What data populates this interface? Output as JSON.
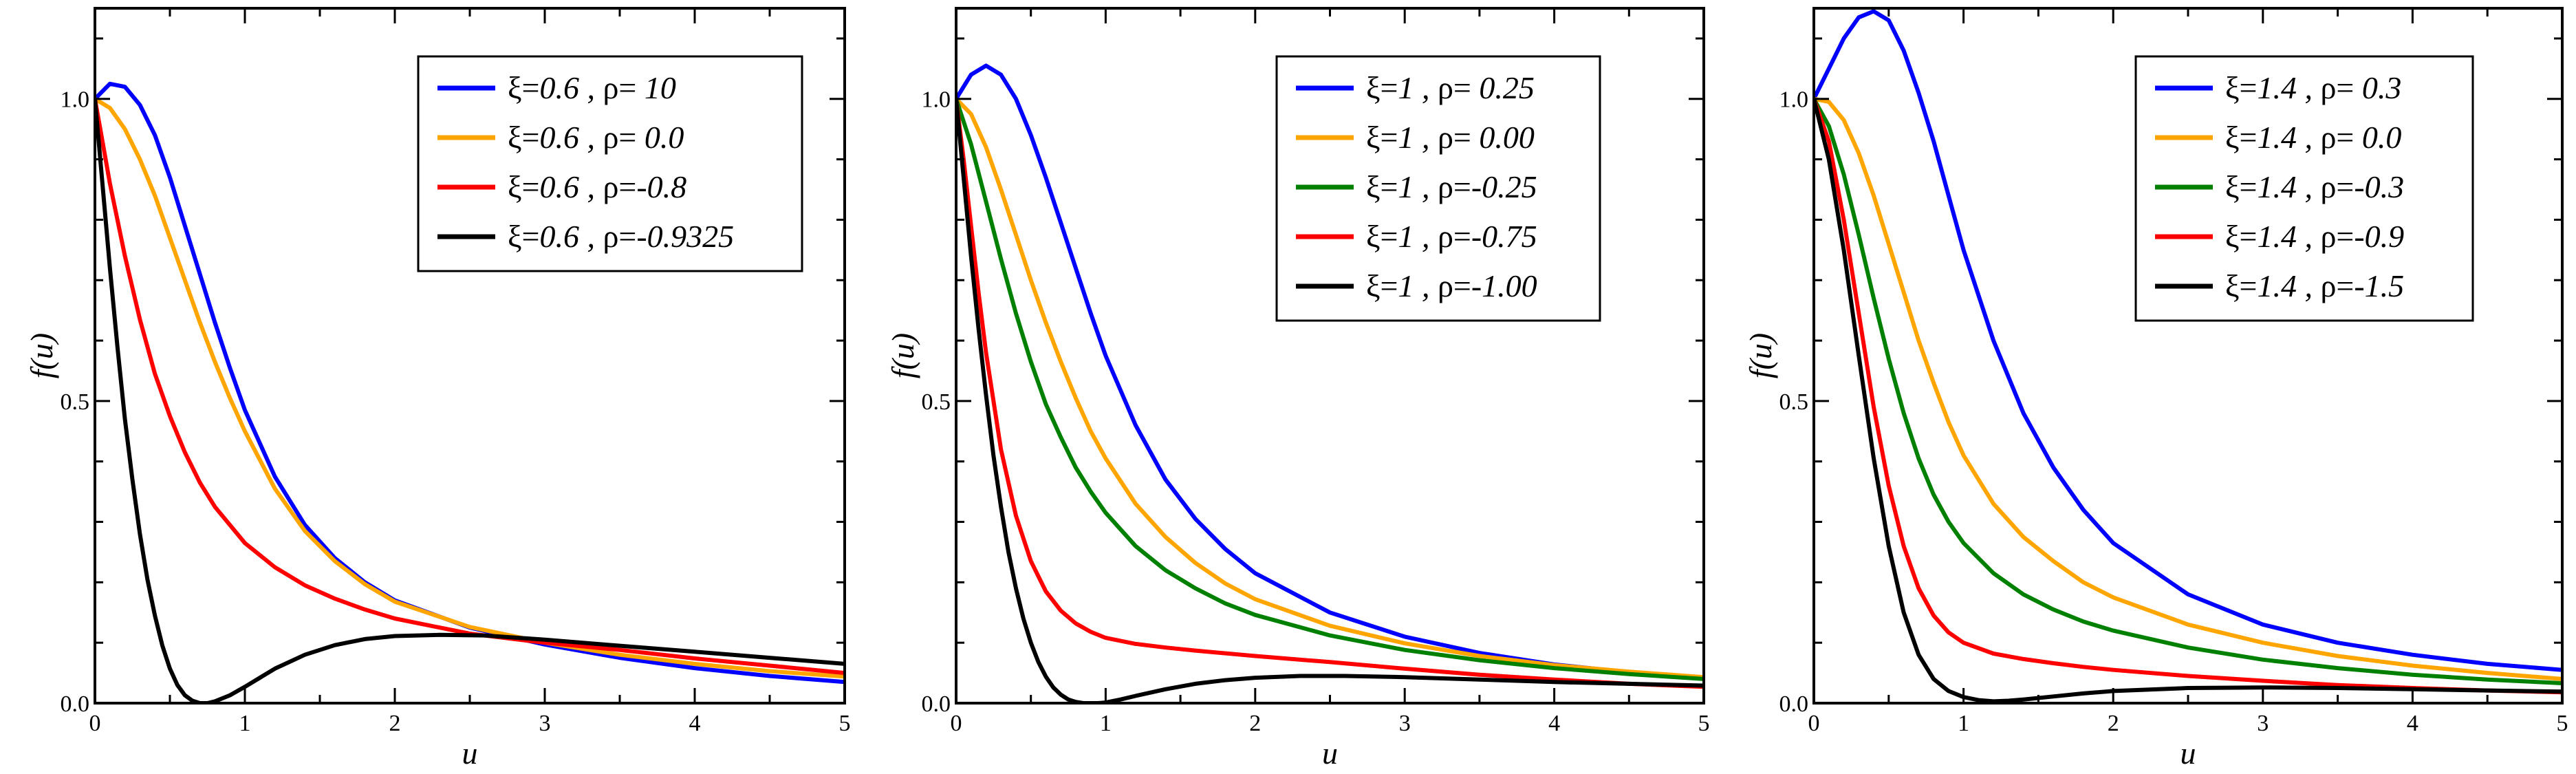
{
  "chart_data": [
    {
      "type": "line",
      "xlabel": "u",
      "ylabel": "f(u)",
      "xlim": [
        0,
        5
      ],
      "ylim": [
        0,
        1.15
      ],
      "xticks": [
        "0",
        "1",
        "2",
        "3",
        "4",
        "5"
      ],
      "yticks": [
        "0.0",
        "0.5",
        "1.0"
      ],
      "legend_position": "top-right",
      "series": [
        {
          "name": "ξ=0.6 , ρ= 10",
          "xi": "ξ=",
          "xi_val": "0.6 , ",
          "rho": "ρ=",
          "rho_val": " 10",
          "color": "#0000ff",
          "x": [
            0,
            0.1,
            0.2,
            0.3,
            0.4,
            0.5,
            0.6,
            0.7,
            0.8,
            0.9,
            1.0,
            1.2,
            1.4,
            1.6,
            1.8,
            2.0,
            2.5,
            3.0,
            3.5,
            4.0,
            4.5,
            5.0
          ],
          "y": [
            1.0,
            1.025,
            1.02,
            0.99,
            0.94,
            0.87,
            0.79,
            0.71,
            0.63,
            0.555,
            0.485,
            0.375,
            0.295,
            0.24,
            0.2,
            0.17,
            0.125,
            0.097,
            0.075,
            0.058,
            0.045,
            0.035
          ]
        },
        {
          "name": "ξ=0.6 , ρ= 0.0",
          "xi": "ξ=",
          "xi_val": "0.6 , ",
          "rho": "ρ=",
          "rho_val": " 0.0",
          "color": "#ffa500",
          "x": [
            0,
            0.1,
            0.2,
            0.3,
            0.4,
            0.5,
            0.6,
            0.7,
            0.8,
            0.9,
            1.0,
            1.2,
            1.4,
            1.6,
            1.8,
            2.0,
            2.5,
            3.0,
            3.5,
            4.0,
            4.5,
            5.0
          ],
          "y": [
            1.0,
            0.985,
            0.95,
            0.9,
            0.84,
            0.77,
            0.7,
            0.63,
            0.565,
            0.505,
            0.45,
            0.355,
            0.285,
            0.235,
            0.197,
            0.168,
            0.126,
            0.1,
            0.08,
            0.065,
            0.053,
            0.044
          ]
        },
        {
          "name": "ξ=0.6 , ρ=-0.8",
          "xi": "ξ=",
          "xi_val": "0.6 , ",
          "rho": "ρ=",
          "rho_val": "-0.8",
          "color": "#ff0000",
          "x": [
            0,
            0.05,
            0.1,
            0.2,
            0.3,
            0.4,
            0.5,
            0.6,
            0.7,
            0.8,
            1.0,
            1.2,
            1.4,
            1.6,
            1.8,
            2.0,
            2.5,
            3.0,
            3.5,
            4.0,
            4.5,
            5.0
          ],
          "y": [
            1.0,
            0.93,
            0.86,
            0.74,
            0.635,
            0.545,
            0.475,
            0.415,
            0.365,
            0.325,
            0.265,
            0.225,
            0.195,
            0.173,
            0.155,
            0.14,
            0.115,
            0.1,
            0.088,
            0.074,
            0.062,
            0.05
          ]
        },
        {
          "name": "ξ=0.6 , ρ=-0.9325",
          "xi": "ξ=",
          "xi_val": "0.6 , ",
          "rho": "ρ=",
          "rho_val": "-0.9325",
          "color": "#000000",
          "x": [
            0,
            0.05,
            0.1,
            0.15,
            0.2,
            0.25,
            0.3,
            0.35,
            0.4,
            0.45,
            0.5,
            0.55,
            0.6,
            0.65,
            0.7,
            0.75,
            0.8,
            0.9,
            1.0,
            1.2,
            1.4,
            1.6,
            1.8,
            2.0,
            2.3,
            2.6,
            3.0,
            3.5,
            4.0,
            4.5,
            5.0
          ],
          "y": [
            1.0,
            0.86,
            0.72,
            0.59,
            0.47,
            0.37,
            0.28,
            0.205,
            0.145,
            0.095,
            0.057,
            0.03,
            0.013,
            0.004,
            0.0,
            0.0,
            0.003,
            0.013,
            0.027,
            0.057,
            0.08,
            0.096,
            0.106,
            0.111,
            0.113,
            0.112,
            0.105,
            0.095,
            0.085,
            0.075,
            0.065
          ]
        }
      ]
    },
    {
      "type": "line",
      "xlabel": "u",
      "ylabel": "f(u)",
      "xlim": [
        0,
        5
      ],
      "ylim": [
        0,
        1.15
      ],
      "xticks": [
        "0",
        "1",
        "2",
        "3",
        "4",
        "5"
      ],
      "yticks": [
        "0.0",
        "0.5",
        "1.0"
      ],
      "legend_position": "top-right",
      "series": [
        {
          "name": "ξ=1 , ρ= 0.25",
          "xi": "ξ=",
          "xi_val": "1 , ",
          "rho": "ρ=",
          "rho_val": " 0.25",
          "color": "#0000ff",
          "x": [
            0,
            0.1,
            0.2,
            0.3,
            0.4,
            0.5,
            0.6,
            0.7,
            0.8,
            0.9,
            1.0,
            1.2,
            1.4,
            1.6,
            1.8,
            2.0,
            2.5,
            3.0,
            3.5,
            4.0,
            4.5,
            5.0
          ],
          "y": [
            1.0,
            1.04,
            1.055,
            1.04,
            1.0,
            0.94,
            0.87,
            0.795,
            0.72,
            0.645,
            0.575,
            0.46,
            0.37,
            0.305,
            0.255,
            0.215,
            0.15,
            0.11,
            0.083,
            0.064,
            0.051,
            0.042
          ]
        },
        {
          "name": "ξ=1 , ρ= 0.00",
          "xi": "ξ=",
          "xi_val": "1 , ",
          "rho": "ρ=",
          "rho_val": " 0.00",
          "color": "#ffa500",
          "x": [
            0,
            0.1,
            0.2,
            0.3,
            0.4,
            0.5,
            0.6,
            0.7,
            0.8,
            0.9,
            1.0,
            1.2,
            1.4,
            1.6,
            1.8,
            2.0,
            2.5,
            3.0,
            3.5,
            4.0,
            4.5,
            5.0
          ],
          "y": [
            1.0,
            0.975,
            0.92,
            0.85,
            0.775,
            0.7,
            0.63,
            0.565,
            0.505,
            0.45,
            0.405,
            0.33,
            0.275,
            0.232,
            0.198,
            0.172,
            0.128,
            0.099,
            0.078,
            0.063,
            0.052,
            0.043
          ]
        },
        {
          "name": "ξ=1 , ρ=-0.25",
          "xi": "ξ=",
          "xi_val": "1 , ",
          "rho": "ρ=",
          "rho_val": "-0.25",
          "color": "#008000",
          "x": [
            0,
            0.1,
            0.2,
            0.3,
            0.4,
            0.5,
            0.6,
            0.7,
            0.8,
            0.9,
            1.0,
            1.2,
            1.4,
            1.6,
            1.8,
            2.0,
            2.5,
            3.0,
            3.5,
            4.0,
            4.5,
            5.0
          ],
          "y": [
            1.0,
            0.925,
            0.83,
            0.735,
            0.645,
            0.565,
            0.495,
            0.44,
            0.39,
            0.35,
            0.315,
            0.26,
            0.22,
            0.19,
            0.165,
            0.146,
            0.112,
            0.088,
            0.071,
            0.058,
            0.048,
            0.04
          ]
        },
        {
          "name": "ξ=1 , ρ=-0.75",
          "xi": "ξ=",
          "xi_val": "1 , ",
          "rho": "ρ=",
          "rho_val": "-0.75",
          "color": "#ff0000",
          "x": [
            0,
            0.05,
            0.1,
            0.15,
            0.2,
            0.3,
            0.4,
            0.5,
            0.6,
            0.7,
            0.8,
            0.9,
            1.0,
            1.2,
            1.4,
            1.6,
            2.0,
            2.5,
            3.0,
            3.5,
            4.0,
            4.5,
            5.0
          ],
          "y": [
            1.0,
            0.9,
            0.79,
            0.68,
            0.58,
            0.42,
            0.31,
            0.235,
            0.185,
            0.153,
            0.132,
            0.118,
            0.108,
            0.098,
            0.092,
            0.087,
            0.078,
            0.068,
            0.057,
            0.047,
            0.039,
            0.032,
            0.027
          ]
        },
        {
          "name": "ξ=1 , ρ=-1.00",
          "xi": "ξ=",
          "xi_val": "1 , ",
          "rho": "ρ=",
          "rho_val": "-1.00",
          "color": "#000000",
          "x": [
            0,
            0.05,
            0.1,
            0.15,
            0.2,
            0.25,
            0.3,
            0.35,
            0.4,
            0.45,
            0.5,
            0.55,
            0.6,
            0.65,
            0.7,
            0.75,
            0.8,
            0.85,
            0.9,
            0.95,
            1.0,
            1.1,
            1.2,
            1.4,
            1.6,
            1.8,
            2.0,
            2.3,
            2.6,
            3.0,
            3.5,
            4.0,
            4.5,
            5.0
          ],
          "y": [
            1.0,
            0.87,
            0.74,
            0.62,
            0.51,
            0.41,
            0.325,
            0.25,
            0.19,
            0.14,
            0.1,
            0.068,
            0.044,
            0.026,
            0.014,
            0.006,
            0.002,
            0.0,
            0.0,
            0.0,
            0.001,
            0.006,
            0.012,
            0.023,
            0.032,
            0.038,
            0.042,
            0.045,
            0.045,
            0.043,
            0.039,
            0.035,
            0.032,
            0.029
          ]
        }
      ]
    },
    {
      "type": "line",
      "xlabel": "u",
      "ylabel": "f(u)",
      "xlim": [
        0,
        5
      ],
      "ylim": [
        0,
        1.15
      ],
      "xticks": [
        "0",
        "1",
        "2",
        "3",
        "4",
        "5"
      ],
      "yticks": [
        "0.0",
        "0.5",
        "1.0"
      ],
      "legend_position": "top-right",
      "series": [
        {
          "name": "ξ=1.4 , ρ= 0.3",
          "xi": "ξ=",
          "xi_val": "1.4 , ",
          "rho": "ρ=",
          "rho_val": " 0.3",
          "color": "#0000ff",
          "x": [
            0,
            0.1,
            0.2,
            0.3,
            0.4,
            0.5,
            0.6,
            0.7,
            0.8,
            0.9,
            1.0,
            1.2,
            1.4,
            1.6,
            1.8,
            2.0,
            2.5,
            3.0,
            3.5,
            4.0,
            4.5,
            5.0
          ],
          "y": [
            1.0,
            1.05,
            1.1,
            1.135,
            1.145,
            1.13,
            1.08,
            1.01,
            0.93,
            0.84,
            0.75,
            0.6,
            0.48,
            0.39,
            0.32,
            0.265,
            0.18,
            0.13,
            0.1,
            0.08,
            0.065,
            0.055
          ]
        },
        {
          "name": "ξ=1.4 , ρ= 0.0",
          "xi": "ξ=",
          "xi_val": "1.4 , ",
          "rho": "ρ=",
          "rho_val": " 0.0",
          "color": "#ffa500",
          "x": [
            0,
            0.1,
            0.2,
            0.3,
            0.4,
            0.5,
            0.6,
            0.7,
            0.8,
            0.9,
            1.0,
            1.2,
            1.4,
            1.6,
            1.8,
            2.0,
            2.5,
            3.0,
            3.5,
            4.0,
            4.5,
            5.0
          ],
          "y": [
            1.0,
            0.995,
            0.965,
            0.91,
            0.84,
            0.76,
            0.68,
            0.6,
            0.53,
            0.465,
            0.41,
            0.33,
            0.275,
            0.235,
            0.2,
            0.175,
            0.13,
            0.1,
            0.078,
            0.062,
            0.05,
            0.04
          ]
        },
        {
          "name": "ξ=1.4 , ρ=-0.3",
          "xi": "ξ=",
          "xi_val": "1.4 , ",
          "rho": "ρ=",
          "rho_val": "-0.3",
          "color": "#008000",
          "x": [
            0,
            0.1,
            0.2,
            0.3,
            0.4,
            0.5,
            0.6,
            0.7,
            0.8,
            0.9,
            1.0,
            1.2,
            1.4,
            1.6,
            1.8,
            2.0,
            2.5,
            3.0,
            3.5,
            4.0,
            4.5,
            5.0
          ],
          "y": [
            1.0,
            0.955,
            0.875,
            0.775,
            0.67,
            0.57,
            0.48,
            0.405,
            0.345,
            0.3,
            0.265,
            0.215,
            0.18,
            0.155,
            0.135,
            0.12,
            0.092,
            0.072,
            0.058,
            0.047,
            0.039,
            0.033
          ]
        },
        {
          "name": "ξ=1.4 , ρ=-0.9",
          "xi": "ξ=",
          "xi_val": "1.4 , ",
          "rho": "ρ=",
          "rho_val": "-0.9",
          "color": "#ff0000",
          "x": [
            0,
            0.1,
            0.2,
            0.3,
            0.4,
            0.5,
            0.6,
            0.7,
            0.8,
            0.9,
            1.0,
            1.2,
            1.4,
            1.6,
            1.8,
            2.0,
            2.5,
            3.0,
            3.5,
            4.0,
            4.5,
            5.0
          ],
          "y": [
            1.0,
            0.93,
            0.8,
            0.645,
            0.49,
            0.36,
            0.26,
            0.19,
            0.145,
            0.117,
            0.1,
            0.082,
            0.073,
            0.066,
            0.06,
            0.055,
            0.045,
            0.037,
            0.03,
            0.025,
            0.021,
            0.018
          ]
        },
        {
          "name": "ξ=1.4 , ρ=-1.5",
          "xi": "ξ=",
          "xi_val": "1.4 , ",
          "rho": "ρ=",
          "rho_val": "-1.5",
          "color": "#000000",
          "x": [
            0,
            0.1,
            0.2,
            0.3,
            0.4,
            0.5,
            0.6,
            0.7,
            0.8,
            0.9,
            1.0,
            1.1,
            1.2,
            1.3,
            1.4,
            1.6,
            1.8,
            2.0,
            2.5,
            3.0,
            3.5,
            4.0,
            4.5,
            5.0
          ],
          "y": [
            1.0,
            0.9,
            0.75,
            0.575,
            0.405,
            0.26,
            0.15,
            0.08,
            0.04,
            0.02,
            0.01,
            0.005,
            0.003,
            0.004,
            0.006,
            0.011,
            0.016,
            0.02,
            0.025,
            0.026,
            0.025,
            0.023,
            0.021,
            0.019
          ]
        }
      ]
    }
  ]
}
